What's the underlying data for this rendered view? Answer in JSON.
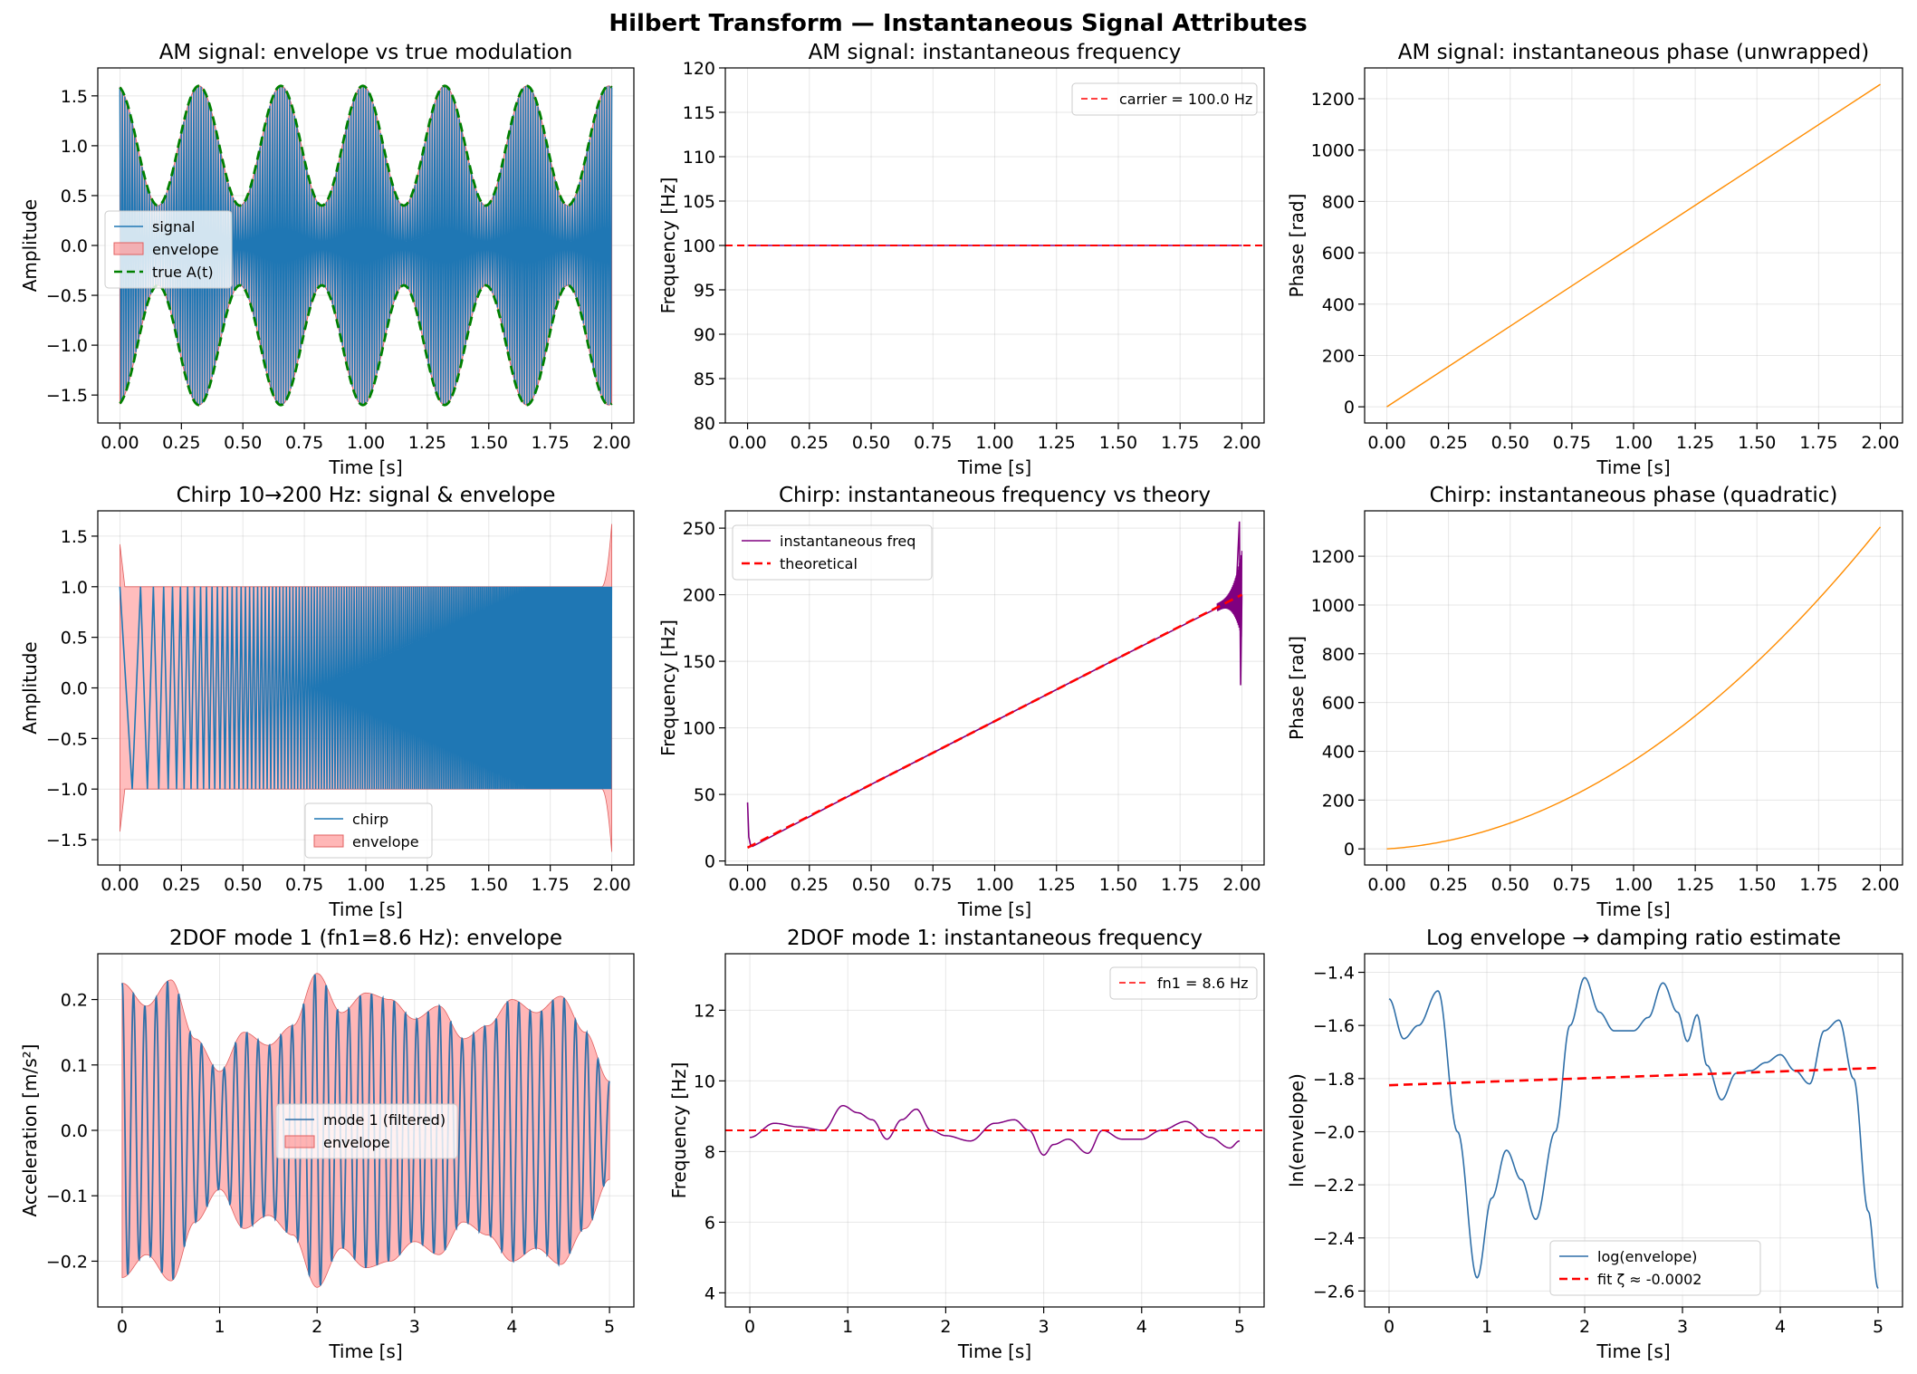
{
  "figure": {
    "suptitle": "Hilbert Transform — Instantaneous Signal Attributes",
    "colors": {
      "signal": "#1f77b4",
      "envelope_fill": "#ff9999",
      "envelope_edge": "#e06060",
      "true": "#008000",
      "red": "#ff0000",
      "purple": "#800080",
      "orange": "#ff8c00",
      "steel": "#2f6fa8"
    }
  },
  "chart_data": [
    {
      "id": "am_env",
      "type": "line",
      "title": "AM signal: envelope vs true modulation",
      "xlabel": "Time [s]",
      "ylabel": "Amplitude",
      "xlim": [
        -0.09,
        2.09
      ],
      "ylim": [
        -1.78,
        1.78
      ],
      "xticks": [
        0,
        0.25,
        0.5,
        0.75,
        1,
        1.25,
        1.5,
        1.75,
        2
      ],
      "xtick_labels": [
        "0.00",
        "0.25",
        "0.50",
        "0.75",
        "1.00",
        "1.25",
        "1.50",
        "1.75",
        "2.00"
      ],
      "yticks": [
        -1.5,
        -1,
        -0.5,
        0,
        0.5,
        1,
        1.5
      ],
      "ytick_labels": [
        "−1.5",
        "−1.0",
        "−0.5",
        "0.0",
        "0.5",
        "1.0",
        "1.5"
      ],
      "legend": {
        "position": "center-left",
        "entries": [
          "signal",
          "envelope",
          "true A(t)"
        ]
      },
      "series": [
        {
          "name": "signal",
          "kind": "carrier",
          "carrier_hz": 100,
          "mod_hz": 3,
          "mod_depth": 0.6,
          "phase": 1.8
        },
        {
          "name": "envelope",
          "kind": "band",
          "mod_hz": 3,
          "mod_depth": 0.6,
          "phase": 1.8
        },
        {
          "name": "true A(t)",
          "kind": "dashed-envelope",
          "mod_hz": 3,
          "mod_depth": 0.6,
          "phase": 1.8
        }
      ]
    },
    {
      "id": "am_freq",
      "type": "line",
      "title": "AM signal: instantaneous frequency",
      "xlabel": "Time [s]",
      "ylabel": "Frequency [Hz]",
      "xlim": [
        -0.09,
        2.09
      ],
      "ylim": [
        80,
        120
      ],
      "xticks": [
        0,
        0.25,
        0.5,
        0.75,
        1,
        1.25,
        1.5,
        1.75,
        2
      ],
      "xtick_labels": [
        "0.00",
        "0.25",
        "0.50",
        "0.75",
        "1.00",
        "1.25",
        "1.50",
        "1.75",
        "2.00"
      ],
      "yticks": [
        80,
        85,
        90,
        95,
        100,
        105,
        110,
        115,
        120
      ],
      "ytick_labels": [
        "80",
        "85",
        "90",
        "95",
        "100",
        "105",
        "110",
        "115",
        "120"
      ],
      "legend": {
        "position": "upper-right",
        "entries": [
          "carrier = 100.0 Hz"
        ]
      },
      "series": [
        {
          "name": "instantaneous frequency",
          "x": [
            0,
            2
          ],
          "y": [
            100,
            100
          ]
        },
        {
          "name": "carrier = 100.0 Hz",
          "hline": 100
        }
      ]
    },
    {
      "id": "am_phase",
      "type": "line",
      "title": "AM signal: instantaneous phase (unwrapped)",
      "xlabel": "Time [s]",
      "ylabel": "Phase [rad]",
      "xlim": [
        -0.09,
        2.09
      ],
      "ylim": [
        -63,
        1320
      ],
      "xticks": [
        0,
        0.25,
        0.5,
        0.75,
        1,
        1.25,
        1.5,
        1.75,
        2
      ],
      "xtick_labels": [
        "0.00",
        "0.25",
        "0.50",
        "0.75",
        "1.00",
        "1.25",
        "1.50",
        "1.75",
        "2.00"
      ],
      "yticks": [
        0,
        200,
        400,
        600,
        800,
        1000,
        1200
      ],
      "ytick_labels": [
        "0",
        "200",
        "400",
        "600",
        "800",
        "1000",
        "1200"
      ],
      "series": [
        {
          "name": "phase",
          "x": [
            0,
            2
          ],
          "y": [
            0,
            1256
          ]
        }
      ]
    },
    {
      "id": "chirp_env",
      "type": "line",
      "title": "Chirp 10→200 Hz: signal & envelope",
      "xlabel": "Time [s]",
      "ylabel": "Amplitude",
      "xlim": [
        -0.09,
        2.09
      ],
      "ylim": [
        -1.75,
        1.75
      ],
      "xticks": [
        0,
        0.25,
        0.5,
        0.75,
        1,
        1.25,
        1.5,
        1.75,
        2
      ],
      "xtick_labels": [
        "0.00",
        "0.25",
        "0.50",
        "0.75",
        "1.00",
        "1.25",
        "1.50",
        "1.75",
        "2.00"
      ],
      "yticks": [
        -1.5,
        -1,
        -0.5,
        0,
        0.5,
        1,
        1.5
      ],
      "ytick_labels": [
        "−1.5",
        "−1.0",
        "−0.5",
        "0.0",
        "0.5",
        "1.0",
        "1.5"
      ],
      "legend": {
        "position": "lower-center",
        "entries": [
          "chirp",
          "envelope"
        ]
      },
      "series": [
        {
          "name": "chirp",
          "kind": "chirp",
          "f0": 10,
          "f1": 200,
          "duration": 2
        },
        {
          "name": "envelope",
          "kind": "band",
          "level": 1.0,
          "edge_peak_start": 1.42,
          "edge_peak_end": 1.62
        }
      ]
    },
    {
      "id": "chirp_freq",
      "type": "line",
      "title": "Chirp: instantaneous frequency vs theory",
      "xlabel": "Time [s]",
      "ylabel": "Frequency [Hz]",
      "xlim": [
        -0.09,
        2.09
      ],
      "ylim": [
        -3,
        263
      ],
      "xticks": [
        0,
        0.25,
        0.5,
        0.75,
        1,
        1.25,
        1.5,
        1.75,
        2
      ],
      "xtick_labels": [
        "0.00",
        "0.25",
        "0.50",
        "0.75",
        "1.00",
        "1.25",
        "1.50",
        "1.75",
        "2.00"
      ],
      "yticks": [
        0,
        50,
        100,
        150,
        200,
        250
      ],
      "ytick_labels": [
        "0",
        "50",
        "100",
        "150",
        "200",
        "250"
      ],
      "legend": {
        "position": "upper-left",
        "entries": [
          "instantaneous freq",
          "theoretical"
        ]
      },
      "series": [
        {
          "name": "instantaneous freq",
          "x": [
            0,
            0.005,
            0.012,
            0.02,
            0.5,
            1,
            1.5,
            1.9,
            1.95,
            1.98,
            1.99,
            1.995,
            2
          ],
          "y": [
            44,
            18,
            12,
            11,
            57.5,
            105,
            152.5,
            190,
            195,
            215,
            255,
            132,
            200
          ]
        },
        {
          "name": "theoretical",
          "x": [
            0,
            2
          ],
          "y": [
            10,
            200
          ]
        }
      ]
    },
    {
      "id": "chirp_phase",
      "type": "line",
      "title": "Chirp: instantaneous phase (quadratic)",
      "xlabel": "Time [s]",
      "ylabel": "Phase [rad]",
      "xlim": [
        -0.09,
        2.09
      ],
      "ylim": [
        -66,
        1386
      ],
      "xticks": [
        0,
        0.25,
        0.5,
        0.75,
        1,
        1.25,
        1.5,
        1.75,
        2
      ],
      "xtick_labels": [
        "0.00",
        "0.25",
        "0.50",
        "0.75",
        "1.00",
        "1.25",
        "1.50",
        "1.75",
        "2.00"
      ],
      "yticks": [
        0,
        200,
        400,
        600,
        800,
        1000,
        1200
      ],
      "ytick_labels": [
        "0",
        "200",
        "400",
        "600",
        "800",
        "1000",
        "1200"
      ],
      "series": [
        {
          "name": "phase",
          "f0": 10,
          "f1": 200,
          "duration": 2,
          "y_end": 1320
        }
      ]
    },
    {
      "id": "dof_env",
      "type": "line",
      "title": "2DOF mode 1 (fn1=8.6 Hz): envelope",
      "xlabel": "Time [s]",
      "ylabel": "Acceleration [m/s²]",
      "xlim": [
        -0.25,
        5.25
      ],
      "ylim": [
        -0.27,
        0.27
      ],
      "xticks": [
        0,
        1,
        2,
        3,
        4,
        5
      ],
      "xtick_labels": [
        "0",
        "1",
        "2",
        "3",
        "4",
        "5"
      ],
      "yticks": [
        -0.2,
        -0.1,
        0,
        0.1,
        0.2
      ],
      "ytick_labels": [
        "−0.2",
        "−0.1",
        "0.0",
        "0.1",
        "0.2"
      ],
      "legend": {
        "position": "center",
        "entries": [
          "mode 1 (filtered)",
          "envelope"
        ]
      },
      "series": [
        {
          "name": "mode 1 (filtered)",
          "kind": "carrier",
          "carrier_hz": 8.6
        },
        {
          "name": "envelope",
          "x": [
            0,
            0.25,
            0.5,
            0.75,
            1,
            1.25,
            1.5,
            1.75,
            2,
            2.25,
            2.5,
            2.75,
            3,
            3.25,
            3.5,
            3.75,
            4,
            4.25,
            4.5,
            4.75,
            5
          ],
          "y": [
            0.225,
            0.19,
            0.23,
            0.14,
            0.09,
            0.15,
            0.13,
            0.16,
            0.24,
            0.18,
            0.21,
            0.2,
            0.17,
            0.19,
            0.14,
            0.16,
            0.2,
            0.18,
            0.205,
            0.15,
            0.075
          ]
        }
      ]
    },
    {
      "id": "dof_freq",
      "type": "line",
      "title": "2DOF mode 1: instantaneous frequency",
      "xlabel": "Time [s]",
      "ylabel": "Frequency [Hz]",
      "xlim": [
        -0.25,
        5.25
      ],
      "ylim": [
        3.6,
        13.6
      ],
      "xticks": [
        0,
        1,
        2,
        3,
        4,
        5
      ],
      "xtick_labels": [
        "0",
        "1",
        "2",
        "3",
        "4",
        "5"
      ],
      "yticks": [
        4,
        6,
        8,
        10,
        12
      ],
      "ytick_labels": [
        "4",
        "6",
        "8",
        "10",
        "12"
      ],
      "legend": {
        "position": "upper-right",
        "entries": [
          "fn1 = 8.6 Hz"
        ]
      },
      "series": [
        {
          "name": "instantaneous frequency",
          "x": [
            0,
            0.25,
            0.5,
            0.75,
            0.95,
            1.1,
            1.25,
            1.4,
            1.55,
            1.7,
            1.85,
            2,
            2.25,
            2.5,
            2.7,
            2.85,
            3,
            3.1,
            3.25,
            3.45,
            3.6,
            3.8,
            4,
            4.2,
            4.45,
            4.7,
            4.9,
            5
          ],
          "y": [
            8.4,
            8.8,
            8.7,
            8.6,
            9.3,
            9.1,
            8.9,
            8.35,
            8.9,
            9.2,
            8.6,
            8.45,
            8.3,
            8.8,
            8.9,
            8.6,
            7.9,
            8.2,
            8.35,
            7.95,
            8.6,
            8.35,
            8.35,
            8.6,
            8.85,
            8.4,
            8.1,
            8.3
          ]
        },
        {
          "name": "fn1 = 8.6 Hz",
          "hline": 8.6
        }
      ]
    },
    {
      "id": "log_env",
      "type": "line",
      "title": "Log envelope → damping ratio estimate",
      "xlabel": "Time [s]",
      "ylabel": "ln(envelope)",
      "xlim": [
        -0.25,
        5.25
      ],
      "ylim": [
        -2.66,
        -1.33
      ],
      "xticks": [
        0,
        1,
        2,
        3,
        4,
        5
      ],
      "xtick_labels": [
        "0",
        "1",
        "2",
        "3",
        "4",
        "5"
      ],
      "yticks": [
        -2.6,
        -2.4,
        -2.2,
        -2,
        -1.8,
        -1.6,
        -1.4
      ],
      "ytick_labels": [
        "−2.6",
        "−2.4",
        "−2.2",
        "−2.0",
        "−1.8",
        "−1.6",
        "−1.4"
      ],
      "legend": {
        "position": "lower-center",
        "entries": [
          "log(envelope)",
          "fit  ζ ≈ -0.0002"
        ]
      },
      "series": [
        {
          "name": "log(envelope)",
          "x": [
            0,
            0.15,
            0.3,
            0.5,
            0.7,
            0.9,
            1.05,
            1.2,
            1.35,
            1.5,
            1.7,
            1.85,
            2,
            2.15,
            2.3,
            2.5,
            2.65,
            2.8,
            2.95,
            3.05,
            3.15,
            3.25,
            3.4,
            3.55,
            3.7,
            3.85,
            4,
            4.15,
            4.3,
            4.45,
            4.6,
            4.75,
            4.9,
            5
          ],
          "y": [
            -1.5,
            -1.65,
            -1.6,
            -1.47,
            -2.0,
            -2.55,
            -2.25,
            -2.07,
            -2.18,
            -2.33,
            -2.0,
            -1.6,
            -1.42,
            -1.55,
            -1.62,
            -1.62,
            -1.57,
            -1.44,
            -1.55,
            -1.66,
            -1.56,
            -1.75,
            -1.88,
            -1.78,
            -1.77,
            -1.74,
            -1.71,
            -1.77,
            -1.82,
            -1.62,
            -1.58,
            -1.8,
            -2.3,
            -2.59
          ]
        },
        {
          "name": "fit  ζ ≈ -0.0002",
          "x": [
            0,
            5
          ],
          "y": [
            -1.825,
            -1.76
          ]
        }
      ]
    }
  ]
}
